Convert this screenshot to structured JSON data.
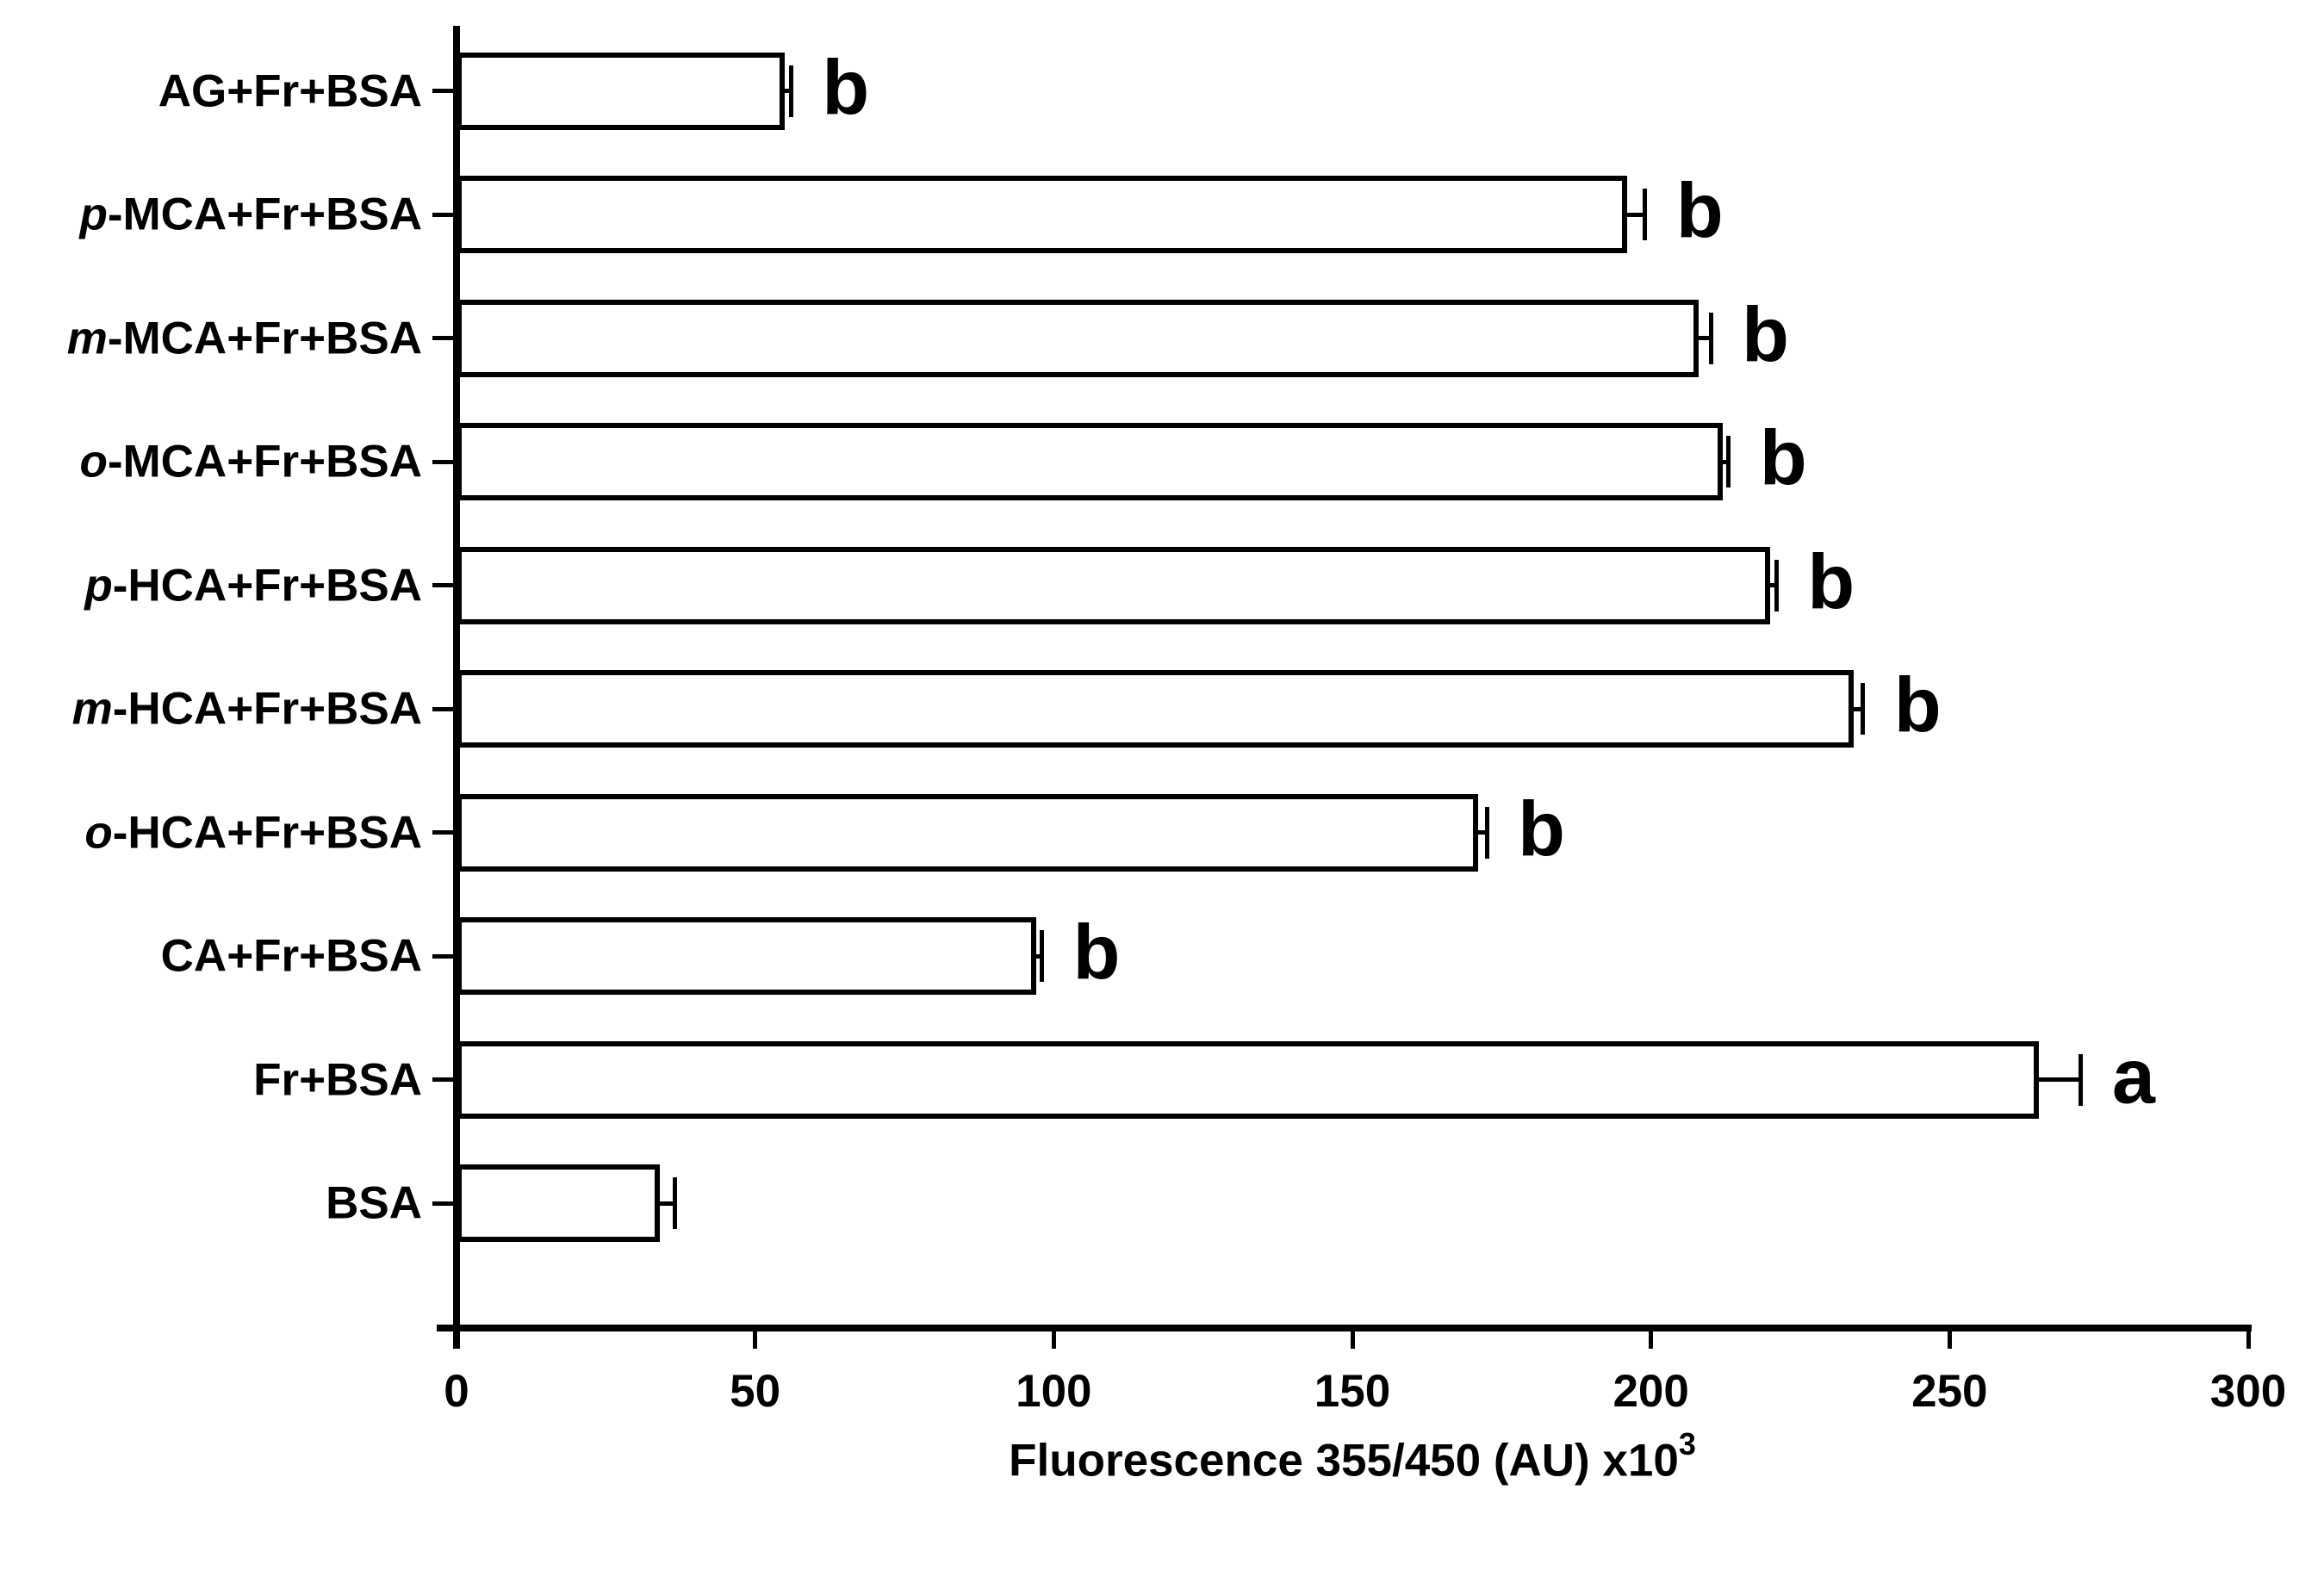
{
  "figure": {
    "background": "#ffffff",
    "ink": "#000000"
  },
  "chart_data": {
    "type": "bar",
    "orientation": "horizontal",
    "title": "",
    "xlabel": "Fluorescence 355/450 (AU) x10",
    "xlabel_superscript": "3",
    "ylabel": "",
    "xlim": [
      0,
      300
    ],
    "xticks": [
      0,
      50,
      100,
      150,
      200,
      250,
      300
    ],
    "grid": false,
    "legend": false,
    "bar_fill": "#ffffff",
    "bar_border": "#000000",
    "categories_note": "listed top to bottom as drawn",
    "bars": [
      {
        "prefix": "",
        "label": "AG+Fr+BSA",
        "value": 55,
        "error": 1,
        "letter": "b"
      },
      {
        "prefix": "p",
        "label": "-MCA+Fr+BSA",
        "value": 196,
        "error": 3,
        "letter": "b"
      },
      {
        "prefix": "m",
        "label": "-MCA+Fr+BSA",
        "value": 208,
        "error": 2,
        "letter": "b"
      },
      {
        "prefix": "o",
        "label": "-MCA+Fr+BSA",
        "value": 212,
        "error": 1,
        "letter": "b"
      },
      {
        "prefix": "p",
        "label": "-HCA+Fr+BSA",
        "value": 220,
        "error": 1,
        "letter": "b"
      },
      {
        "prefix": "m",
        "label": "-HCA+Fr+BSA",
        "value": 234,
        "error": 1.5,
        "letter": "b"
      },
      {
        "prefix": "o",
        "label": "-HCA+Fr+BSA",
        "value": 171,
        "error": 1.5,
        "letter": "b"
      },
      {
        "prefix": "",
        "label": "CA+Fr+BSA",
        "value": 97,
        "error": 1,
        "letter": "b"
      },
      {
        "prefix": "",
        "label": "Fr+BSA",
        "value": 265,
        "error": 7,
        "letter": "a"
      },
      {
        "prefix": "",
        "label": "BSA",
        "value": 34,
        "error": 2.5,
        "letter": ""
      }
    ]
  }
}
